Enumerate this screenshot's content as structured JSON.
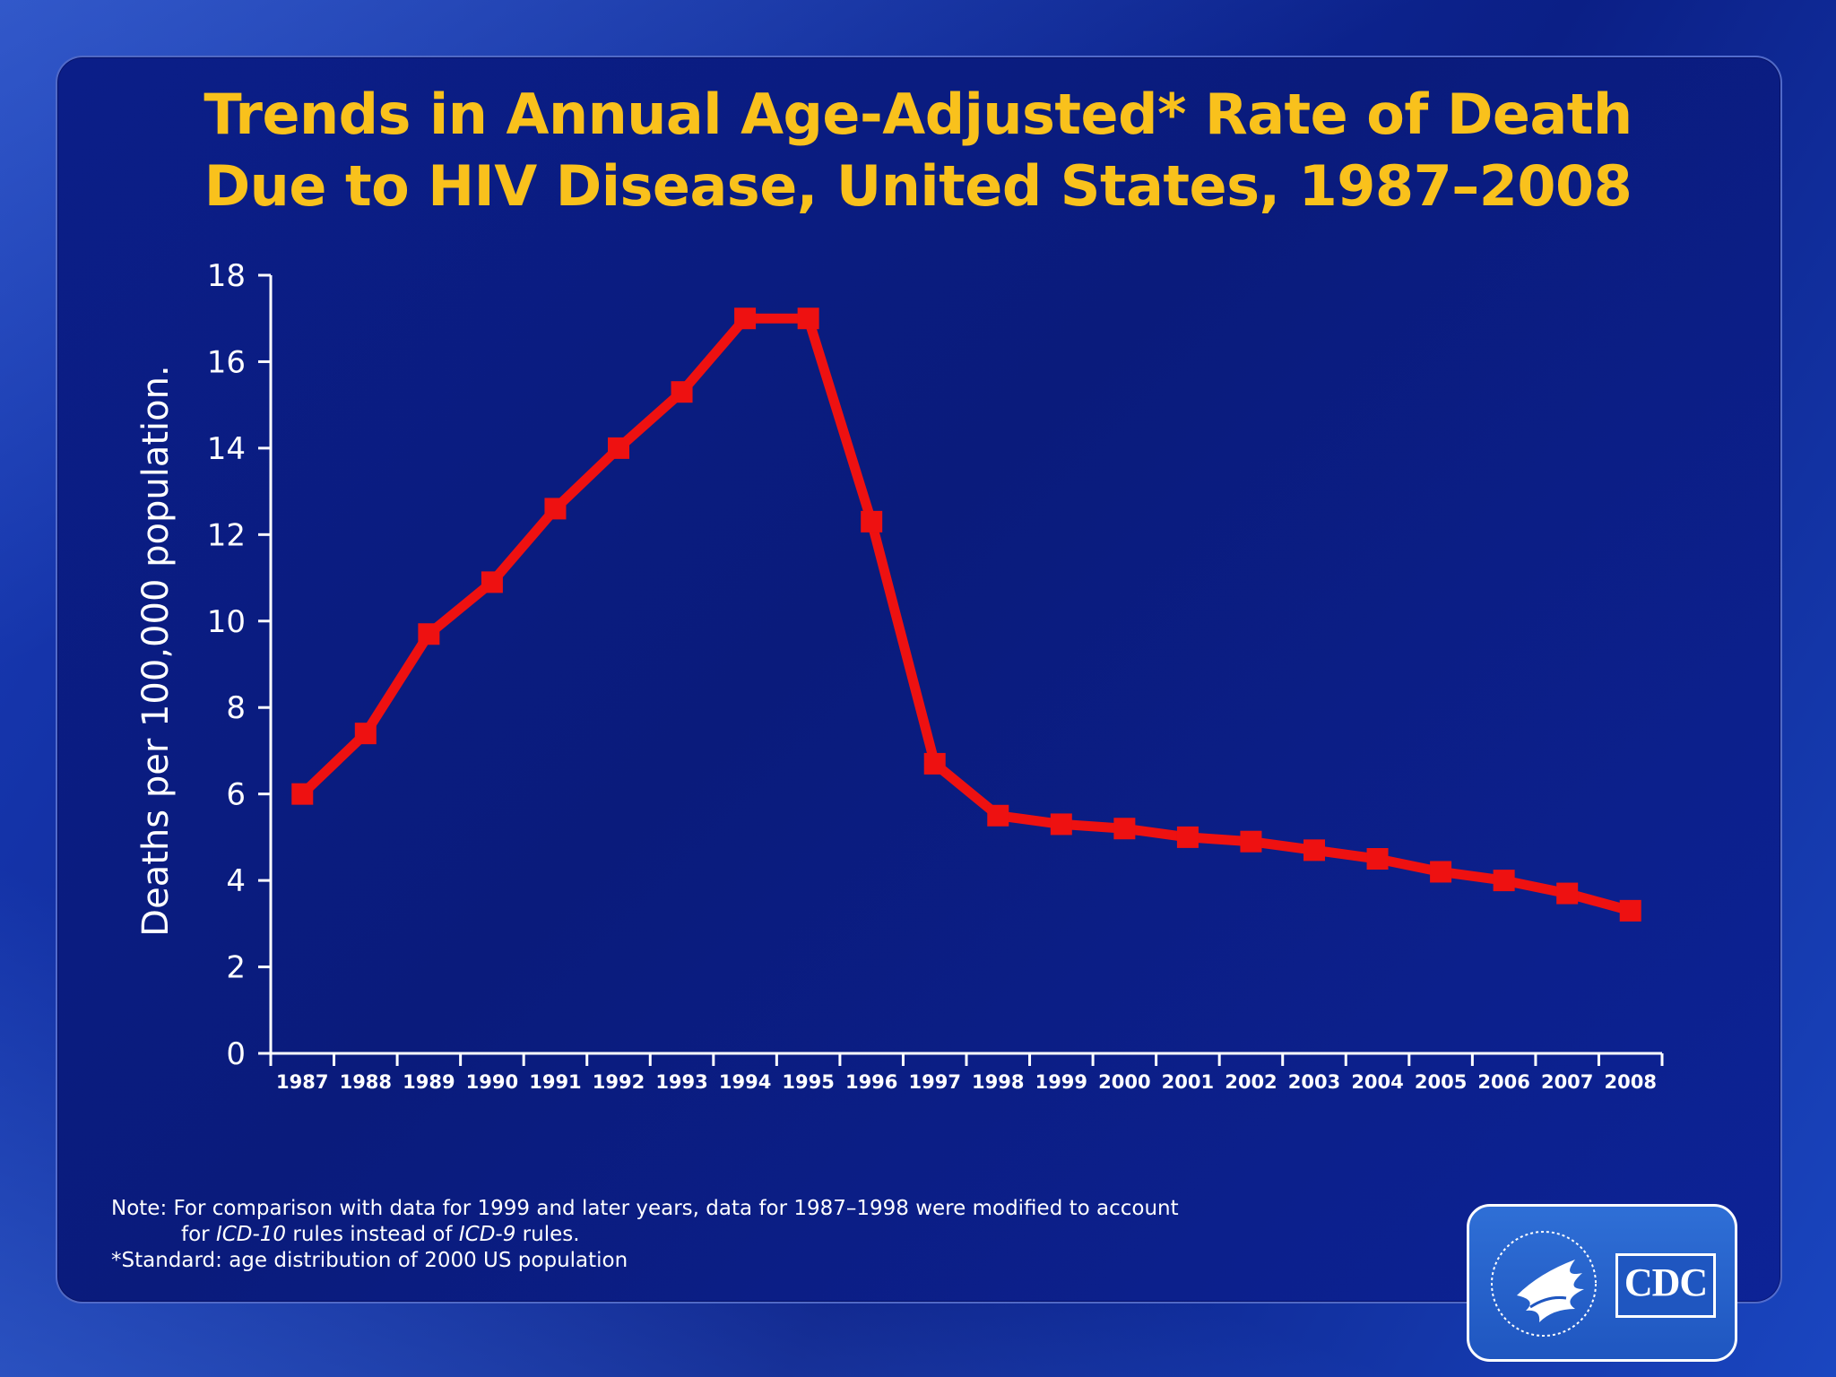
{
  "title": {
    "line1": "Trends in Annual Age-Adjusted* Rate of Death",
    "line2": "Due to HIV Disease, United States, 1987–2008"
  },
  "chart_data": {
    "type": "line",
    "title": "Trends in Annual Age-Adjusted* Rate of Death Due to HIV Disease, United States, 1987–2008",
    "xlabel": "",
    "ylabel": "Deaths per 100,000 population.",
    "categories": [
      "1987",
      "1988",
      "1989",
      "1990",
      "1991",
      "1992",
      "1993",
      "1994",
      "1995",
      "1996",
      "1997",
      "1998",
      "1999",
      "2000",
      "2001",
      "2002",
      "2003",
      "2004",
      "2005",
      "2006",
      "2007",
      "2008"
    ],
    "series": [
      {
        "name": "Age-adjusted death rate",
        "color": "#ee1111",
        "values": [
          6.0,
          7.4,
          9.7,
          10.9,
          12.6,
          14.0,
          15.3,
          17.0,
          17.0,
          12.3,
          6.7,
          5.5,
          5.3,
          5.2,
          5.0,
          4.9,
          4.7,
          4.5,
          4.2,
          4.0,
          3.7,
          3.3
        ]
      }
    ],
    "ylim": [
      0,
      18
    ],
    "yticks": [
      "0",
      "2",
      "4",
      "6",
      "8",
      "10",
      "12",
      "14",
      "16",
      "18"
    ],
    "grid": false
  },
  "notes": {
    "line1": "Note: For comparison  with data  for 1999 and later years, data  for 1987–1998 were modified to account",
    "line2_prefix": "for ",
    "line2_icd10": "ICD-10",
    "line2_mid": " rules  instead  of ",
    "line2_icd9": "ICD-9",
    "line2_suffix": " rules.",
    "line3": "*Standard:  age distribution  of 2000 US population"
  },
  "logo": {
    "cdc_text": "CDC",
    "hhs_icon": "hhs-eagle-icon"
  },
  "colors": {
    "title": "#f9c11c",
    "line": "#ee1111",
    "axis": "#ffffff"
  }
}
